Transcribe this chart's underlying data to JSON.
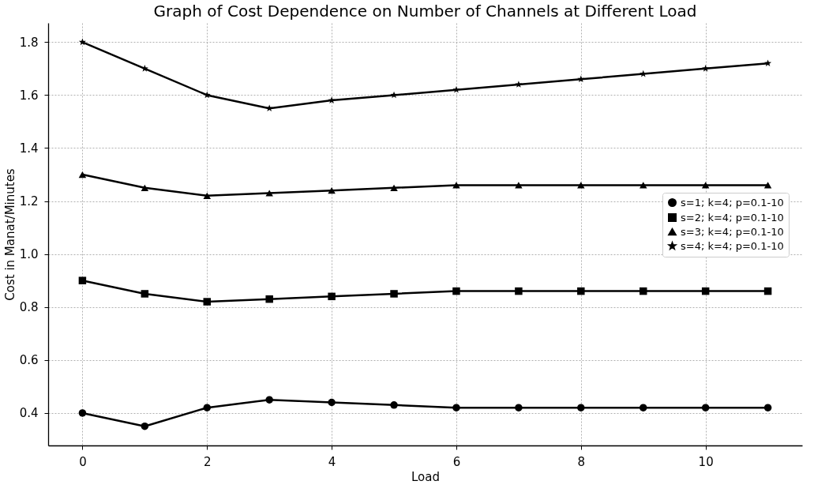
{
  "chart_data": {
    "type": "line",
    "title": "Graph of Cost Dependence on Number of Channels at Different Load",
    "xlabel": "Load",
    "ylabel": "Cost in Manat/Minutes",
    "x": [
      0,
      1,
      2,
      3,
      4,
      5,
      6,
      7,
      8,
      9,
      10,
      11
    ],
    "series": [
      {
        "name": "s=1; k=4; p=0.1-10",
        "color": "#000000",
        "marker": "circle",
        "values": [
          0.4,
          0.35,
          0.42,
          0.45,
          0.44,
          0.43,
          0.42,
          0.42,
          0.42,
          0.42,
          0.42,
          0.42
        ]
      },
      {
        "name": "s=2; k=4; p=0.1-10",
        "color": "#000000",
        "marker": "square",
        "values": [
          0.9,
          0.85,
          0.82,
          0.83,
          0.84,
          0.85,
          0.86,
          0.86,
          0.86,
          0.86,
          0.86,
          0.86
        ]
      },
      {
        "name": "s=3; k=4; p=0.1-10",
        "color": "#000000",
        "marker": "triangle",
        "values": [
          1.3,
          1.25,
          1.22,
          1.23,
          1.24,
          1.25,
          1.26,
          1.26,
          1.26,
          1.26,
          1.26,
          1.26
        ]
      },
      {
        "name": "s=4; k=4; p=0.1-10",
        "color": "#000000",
        "marker": "star",
        "values": [
          1.8,
          1.7,
          1.6,
          1.55,
          1.58,
          1.6,
          1.62,
          1.64,
          1.66,
          1.68,
          1.7,
          1.72
        ]
      }
    ],
    "xlim": [
      -0.55,
      11.55
    ],
    "xticks": [
      0,
      2,
      4,
      6,
      8,
      10
    ],
    "ylim": [
      0.2775,
      1.8725
    ],
    "yticks": [
      {
        "value": 0.4,
        "label": "0.4"
      },
      {
        "value": 0.6,
        "label": "0.6"
      },
      {
        "value": 0.8,
        "label": "0.8"
      },
      {
        "value": 1.0,
        "label": "1.0"
      },
      {
        "value": 1.2,
        "label": "1.2"
      },
      {
        "value": 1.4,
        "label": "1.4"
      },
      {
        "value": 1.6,
        "label": "1.6"
      },
      {
        "value": 1.8,
        "label": "1.8"
      }
    ],
    "grid": true,
    "legend": "right",
    "line_style": "solid"
  }
}
